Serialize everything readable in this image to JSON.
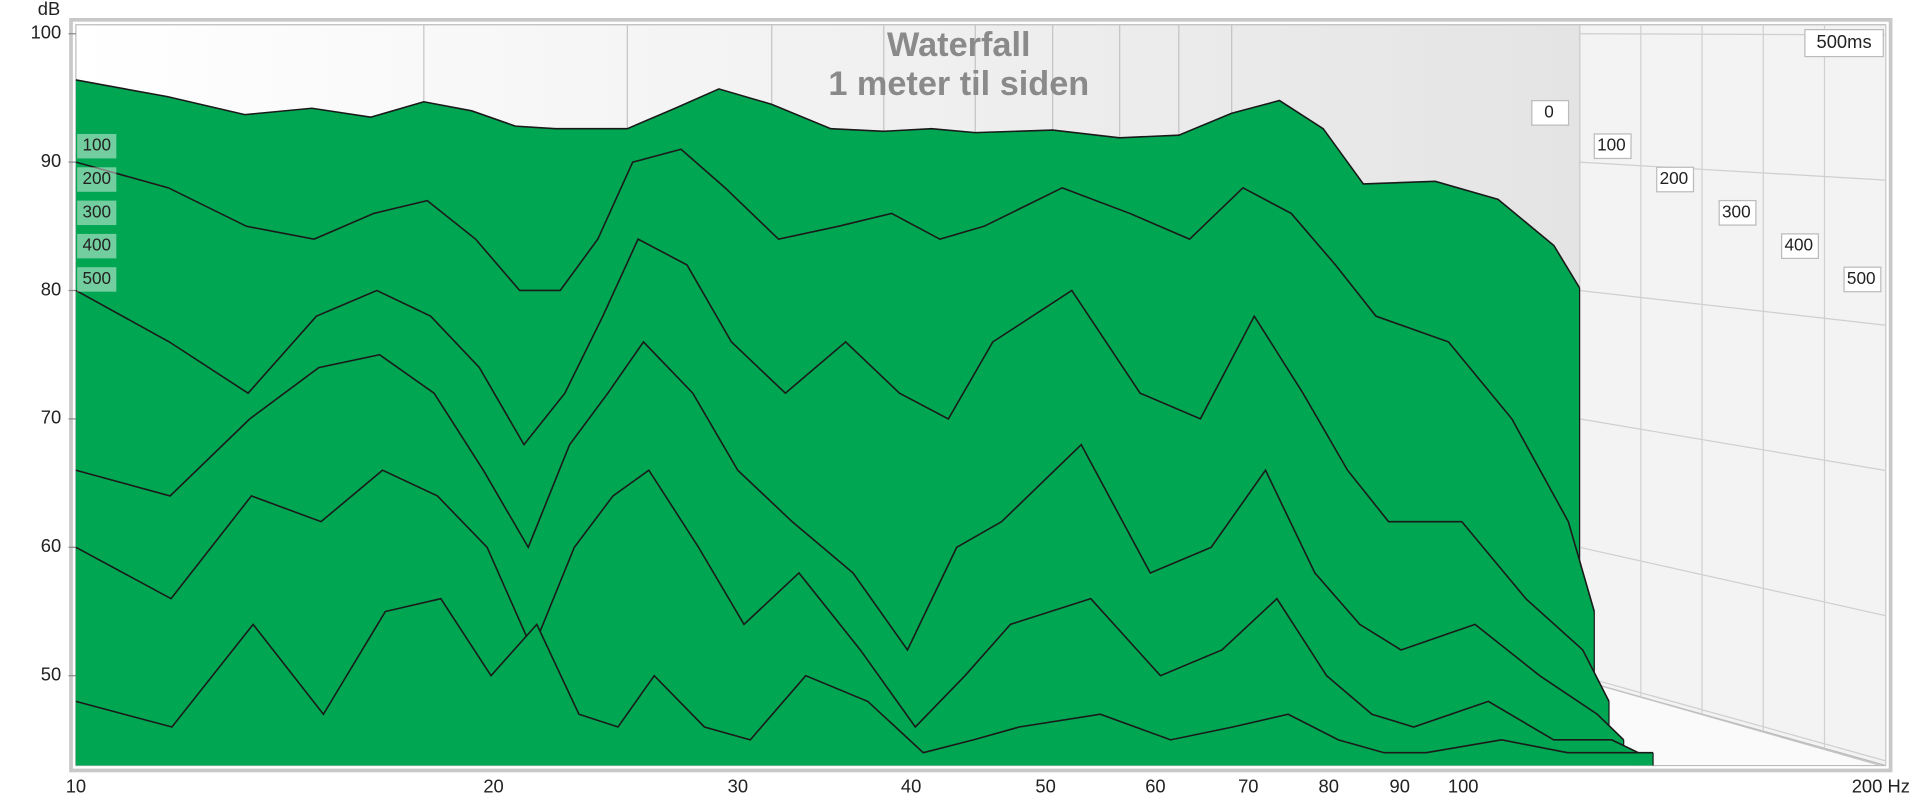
{
  "chart_data": {
    "type": "waterfall",
    "title": "Waterfall",
    "subtitle": "1 meter til siden",
    "y_unit": "dB",
    "depth_label": "500ms",
    "color": "#00a651",
    "line_color": "#1a1a1a",
    "x_scale": "log",
    "xlim": [
      10,
      200
    ],
    "xticks": [
      10,
      20,
      30,
      40,
      50,
      60,
      70,
      80,
      90,
      100,
      {
        "value": 200,
        "label": "200 Hz"
      }
    ],
    "ylim": [
      43,
      100.7
    ],
    "yticks": [
      50,
      60,
      70,
      80,
      90,
      100
    ],
    "tlim": [
      0,
      500
    ],
    "tticks": [
      0,
      100,
      200,
      300,
      400,
      500
    ],
    "grid": true,
    "x": [
      10,
      12,
      14,
      16,
      18,
      20,
      22,
      24,
      26,
      28,
      30,
      33,
      36,
      40,
      45,
      50,
      55,
      60,
      70,
      80,
      90,
      100,
      110,
      120,
      130,
      150,
      170,
      190,
      200
    ],
    "slices": [
      {
        "time": 0,
        "values": [
          96.4,
          95.1,
          93.7,
          94.2,
          93.5,
          94.7,
          94.0,
          92.8,
          92.6,
          92.6,
          92.6,
          94.2,
          95.7,
          94.5,
          92.6,
          92.4,
          92.6,
          92.3,
          92.5,
          91.9,
          92.1,
          93.8,
          94.8,
          92.6,
          88.3,
          88.5,
          87.1,
          83.5,
          80.2
        ]
      },
      {
        "time": 100,
        "values": [
          90,
          88,
          85,
          84,
          86,
          87,
          84,
          80,
          80,
          84,
          90,
          91,
          88,
          84,
          85,
          86,
          84,
          85,
          88,
          86,
          84,
          88,
          86,
          82,
          78,
          76,
          70,
          62,
          55
        ]
      },
      {
        "time": 200,
        "values": [
          80,
          76,
          72,
          78,
          80,
          78,
          74,
          68,
          72,
          78,
          84,
          82,
          76,
          72,
          76,
          72,
          70,
          76,
          80,
          72,
          70,
          78,
          72,
          66,
          62,
          62,
          56,
          52,
          48
        ]
      },
      {
        "time": 300,
        "values": [
          66,
          64,
          70,
          74,
          75,
          72,
          66,
          60,
          68,
          72,
          76,
          72,
          66,
          62,
          58,
          52,
          60,
          62,
          68,
          58,
          60,
          66,
          58,
          54,
          52,
          54,
          50,
          47,
          45
        ]
      },
      {
        "time": 400,
        "values": [
          60,
          56,
          64,
          62,
          66,
          64,
          60,
          52,
          60,
          64,
          66,
          60,
          54,
          58,
          52,
          46,
          50,
          54,
          56,
          50,
          52,
          56,
          50,
          47,
          46,
          48,
          45,
          45,
          44
        ]
      },
      {
        "time": 500,
        "values": [
          48,
          46,
          54,
          47,
          55,
          56,
          50,
          54,
          47,
          46,
          50,
          46,
          45,
          50,
          48,
          44,
          45,
          46,
          47,
          45,
          46,
          47,
          45,
          44,
          44,
          45,
          44,
          44,
          44
        ]
      }
    ]
  }
}
